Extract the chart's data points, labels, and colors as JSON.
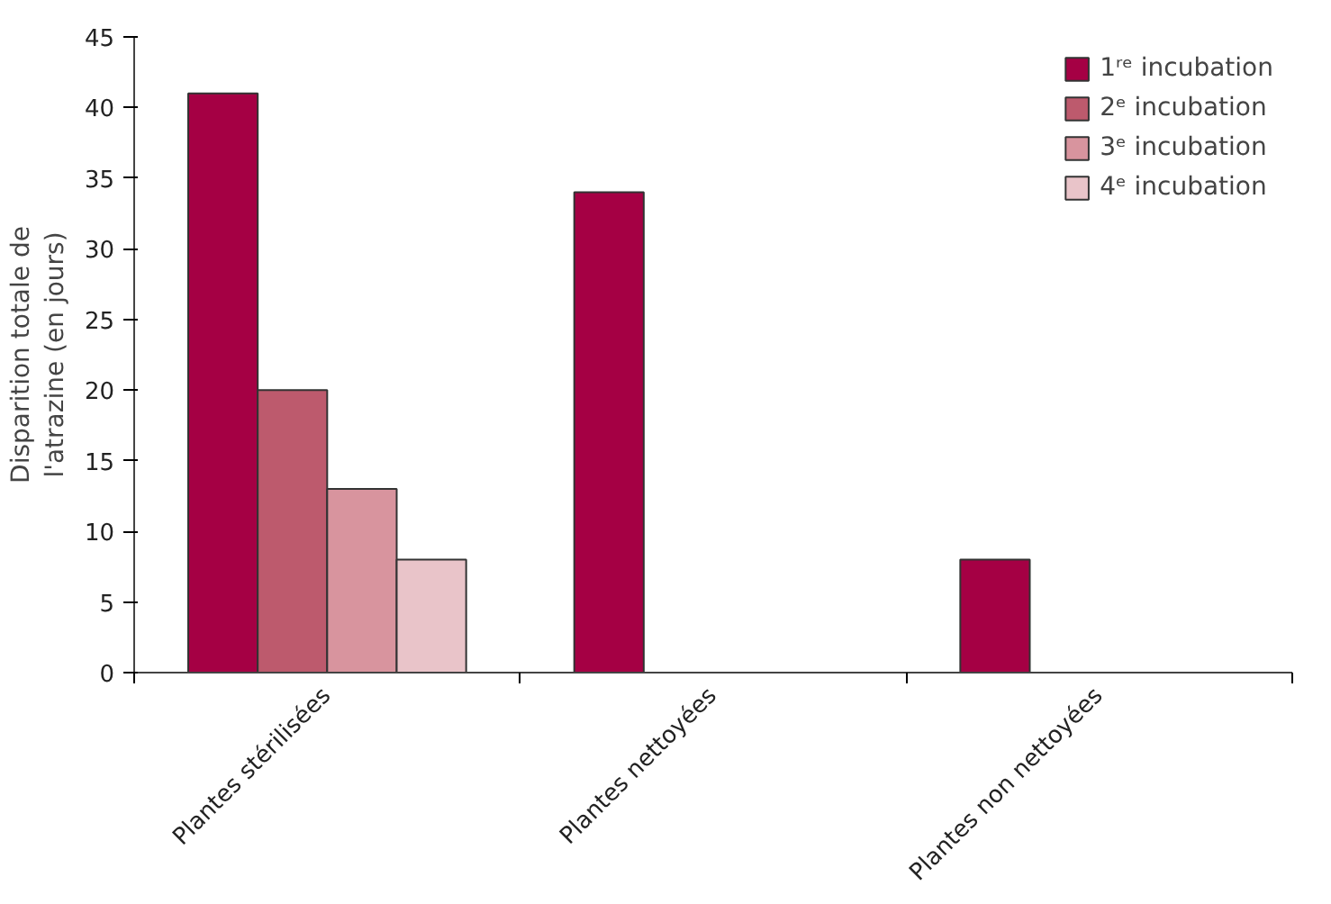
{
  "chart_data": {
    "type": "bar",
    "ylabel": "Disparition totale de\nl'atrazine (en jours)",
    "categories": [
      "Plantes stérilisées",
      "Plantes nettoyées",
      "Plantes non nettoyées"
    ],
    "series": [
      {
        "name": "1ʳᵉ incubation",
        "color": "#a50044",
        "values": [
          41,
          34,
          8
        ]
      },
      {
        "name": "2ᵉ incubation",
        "color": "#bd5a6d",
        "values": [
          20,
          null,
          null
        ]
      },
      {
        "name": "3ᵉ incubation",
        "color": "#d8949e",
        "values": [
          13,
          null,
          null
        ]
      },
      {
        "name": "4ᵉ incubation",
        "color": "#e9c4c9",
        "values": [
          8,
          null,
          null
        ]
      }
    ],
    "ylim": [
      0,
      45
    ],
    "yticks": [
      0,
      5,
      10,
      15,
      20,
      25,
      30,
      35,
      40,
      45
    ],
    "grid": false,
    "legend": "top right"
  }
}
